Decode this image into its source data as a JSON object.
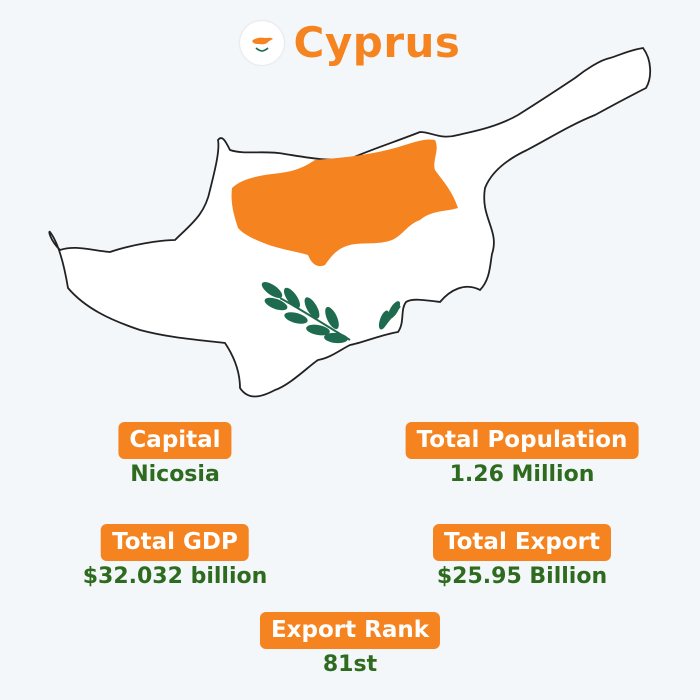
{
  "header": {
    "title": "Cyprus",
    "flag_icon": "cyprus-flag-icon"
  },
  "colors": {
    "accent": "#f5831f",
    "value_text": "#2e6b1f",
    "background": "#f3f7fa",
    "map_fill": "#ffffff",
    "map_outline": "#222222",
    "olive_branch": "#1f6b4f"
  },
  "map": {
    "icon": "cyprus-map-with-flag"
  },
  "stats": {
    "capital": {
      "label": "Capital",
      "value": "Nicosia"
    },
    "population": {
      "label": "Total Population",
      "value": "1.26 Million"
    },
    "gdp": {
      "label": "Total GDP",
      "value": "$32.032 billion"
    },
    "export": {
      "label": "Total Export",
      "value": "$25.95 Billion"
    },
    "rank": {
      "label": "Export Rank",
      "value": "81st"
    }
  }
}
